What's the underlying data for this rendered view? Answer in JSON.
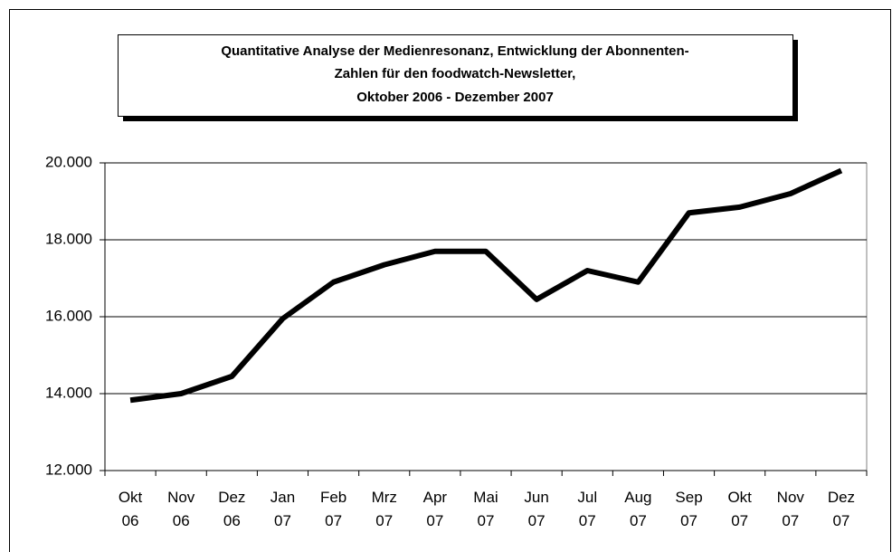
{
  "chart_data": {
    "type": "line",
    "title": [
      "Quantitative Analyse der Medienresonanz, Entwicklung der Abonnenten-",
      "Zahlen für den foodwatch-Newsletter,",
      "Oktober 2006 - Dezember 2007"
    ],
    "categories": [
      "Okt 06",
      "Nov 06",
      "Dez 06",
      "Jan 07",
      "Feb 07",
      "Mrz 07",
      "Apr 07",
      "Mai 07",
      "Jun 07",
      "Jul 07",
      "Aug 07",
      "Sep 07",
      "Okt 07",
      "Nov 07",
      "Dez 07"
    ],
    "values": [
      13830,
      14000,
      14450,
      15950,
      16900,
      17350,
      17700,
      17700,
      16450,
      17200,
      16900,
      18700,
      18850,
      19200,
      19800
    ],
    "color": "#000000",
    "ylim": [
      12000,
      20000
    ],
    "yticks": [
      {
        "value": 12000,
        "label": "12.000"
      },
      {
        "value": 14000,
        "label": "14.000"
      },
      {
        "value": 16000,
        "label": "16.000"
      },
      {
        "value": 18000,
        "label": "18.000"
      },
      {
        "value": 20000,
        "label": "20.000"
      }
    ],
    "grid": true
  }
}
